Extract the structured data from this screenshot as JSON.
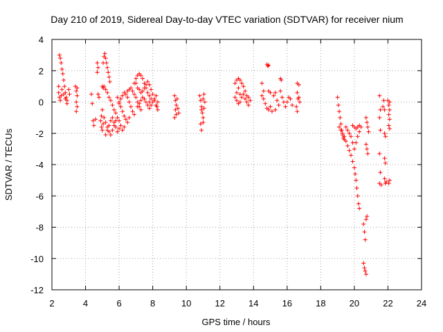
{
  "chart_data": {
    "type": "scatter",
    "title": "Day 210 of 2019, Sidereal Day-to-day VTEC variation (SDTVAR) for receiver nium",
    "xlabel": "GPS time / hours",
    "ylabel": "SDTVAR / TECUs",
    "xlim": [
      2,
      24
    ],
    "ylim": [
      -12,
      4
    ],
    "xticks": [
      2,
      4,
      6,
      8,
      10,
      12,
      14,
      16,
      18,
      20,
      22,
      24
    ],
    "yticks": [
      -12,
      -10,
      -8,
      -6,
      -4,
      -2,
      0,
      2,
      4
    ],
    "grid": true,
    "marker": "plus",
    "color": "#ff0000",
    "series": [
      {
        "name": "SDTVAR",
        "points": [
          [
            2.4,
            1.0
          ],
          [
            2.45,
            3.0
          ],
          [
            2.5,
            2.8
          ],
          [
            2.55,
            2.5
          ],
          [
            2.6,
            2.1
          ],
          [
            2.65,
            1.8
          ],
          [
            2.7,
            1.4
          ],
          [
            2.75,
            1.0
          ],
          [
            2.8,
            0.6
          ],
          [
            2.85,
            0.3
          ],
          [
            2.9,
            0.1
          ],
          [
            2.4,
            0.6
          ],
          [
            2.45,
            0.3
          ],
          [
            2.5,
            0.1
          ],
          [
            2.55,
            0.4
          ],
          [
            2.6,
            0.8
          ],
          [
            2.7,
            0.5
          ],
          [
            2.8,
            0.2
          ],
          [
            2.9,
            -0.1
          ],
          [
            3.0,
            0.8
          ],
          [
            3.05,
            0.5
          ],
          [
            3.4,
            1.0
          ],
          [
            3.45,
            0.7
          ],
          [
            3.5,
            0.4
          ],
          [
            3.45,
            0.0
          ],
          [
            3.5,
            -0.3
          ],
          [
            3.45,
            -0.6
          ],
          [
            3.5,
            0.9
          ],
          [
            4.35,
            0.5
          ],
          [
            4.4,
            -0.1
          ],
          [
            4.45,
            -1.2
          ],
          [
            4.5,
            -1.5
          ],
          [
            4.6,
            -1.1
          ],
          [
            4.7,
            2.5
          ],
          [
            4.75,
            2.2
          ],
          [
            4.7,
            1.9
          ],
          [
            4.75,
            0.5
          ],
          [
            4.8,
            0.3
          ],
          [
            4.9,
            -1.2
          ],
          [
            4.95,
            -1.6
          ],
          [
            5.0,
            -1.8
          ],
          [
            5.05,
            -1.4
          ],
          [
            4.95,
            -0.9
          ],
          [
            5.0,
            -0.5
          ],
          [
            5.05,
            2.5
          ],
          [
            5.1,
            2.9
          ],
          [
            5.15,
            3.1
          ],
          [
            5.2,
            2.8
          ],
          [
            5.25,
            2.5
          ],
          [
            5.3,
            2.2
          ],
          [
            5.35,
            1.9
          ],
          [
            5.4,
            1.6
          ],
          [
            5.45,
            1.3
          ],
          [
            5.0,
            1.0
          ],
          [
            5.05,
            0.9
          ],
          [
            5.1,
            1.0
          ],
          [
            5.2,
            0.8
          ],
          [
            5.3,
            0.6
          ],
          [
            5.4,
            0.3
          ],
          [
            5.5,
            0.1
          ],
          [
            5.6,
            -0.2
          ],
          [
            5.7,
            -0.5
          ],
          [
            5.8,
            -0.7
          ],
          [
            5.1,
            -1.0
          ],
          [
            5.2,
            -1.3
          ],
          [
            5.3,
            -1.6
          ],
          [
            5.4,
            -1.9
          ],
          [
            5.5,
            -2.1
          ],
          [
            5.6,
            -1.8
          ],
          [
            5.7,
            -1.5
          ],
          [
            5.8,
            -1.2
          ],
          [
            5.9,
            -1.0
          ],
          [
            6.0,
            -1.2
          ],
          [
            6.1,
            -1.5
          ],
          [
            6.2,
            -1.8
          ],
          [
            6.3,
            -1.6
          ],
          [
            5.2,
            -2.1
          ],
          [
            5.3,
            -1.8
          ],
          [
            5.4,
            -1.5
          ],
          [
            5.5,
            -1.2
          ],
          [
            5.6,
            -1.0
          ],
          [
            5.7,
            -1.3
          ],
          [
            5.8,
            -1.6
          ],
          [
            5.9,
            -1.9
          ],
          [
            6.0,
            -1.7
          ],
          [
            5.9,
            0.3
          ],
          [
            6.0,
            0.0
          ],
          [
            6.1,
            -0.3
          ],
          [
            6.2,
            -0.6
          ],
          [
            6.3,
            -0.9
          ],
          [
            6.4,
            -1.1
          ],
          [
            6.5,
            -1.3
          ],
          [
            6.6,
            -1.0
          ],
          [
            6.0,
            -0.1
          ],
          [
            6.1,
            0.2
          ],
          [
            6.2,
            0.4
          ],
          [
            6.3,
            0.6
          ],
          [
            6.4,
            0.5
          ],
          [
            6.5,
            0.3
          ],
          [
            6.6,
            0.0
          ],
          [
            6.7,
            -0.3
          ],
          [
            6.8,
            -0.6
          ],
          [
            6.9,
            -0.8
          ],
          [
            6.5,
            0.7
          ],
          [
            6.6,
            0.8
          ],
          [
            6.7,
            0.9
          ],
          [
            6.8,
            0.7
          ],
          [
            6.9,
            0.5
          ],
          [
            7.0,
            0.3
          ],
          [
            7.1,
            0.0
          ],
          [
            7.2,
            -0.3
          ],
          [
            7.3,
            -0.5
          ],
          [
            6.9,
            1.2
          ],
          [
            7.0,
            1.5
          ],
          [
            7.1,
            1.7
          ],
          [
            7.2,
            1.8
          ],
          [
            7.3,
            1.7
          ],
          [
            7.4,
            1.5
          ],
          [
            7.5,
            1.2
          ],
          [
            7.6,
            0.9
          ],
          [
            7.7,
            0.6
          ],
          [
            7.8,
            0.4
          ],
          [
            7.0,
            1.2
          ],
          [
            7.1,
            0.9
          ],
          [
            7.2,
            0.8
          ],
          [
            7.3,
            0.6
          ],
          [
            7.4,
            0.7
          ],
          [
            7.5,
            0.9
          ],
          [
            7.6,
            1.1
          ],
          [
            7.7,
            1.3
          ],
          [
            7.8,
            1.1
          ],
          [
            7.9,
            0.8
          ],
          [
            7.1,
            -0.3
          ],
          [
            7.2,
            -0.1
          ],
          [
            7.3,
            0.1
          ],
          [
            7.4,
            0.3
          ],
          [
            7.5,
            0.2
          ],
          [
            7.6,
            0.0
          ],
          [
            7.7,
            -0.2
          ],
          [
            7.8,
            0.0
          ],
          [
            7.9,
            0.2
          ],
          [
            7.8,
            -0.4
          ],
          [
            7.9,
            -0.2
          ],
          [
            8.0,
            0.0
          ],
          [
            8.1,
            0.2
          ],
          [
            8.2,
            0.4
          ],
          [
            8.0,
            0.5
          ],
          [
            8.1,
            0.1
          ],
          [
            8.2,
            -0.2
          ],
          [
            8.3,
            -0.5
          ],
          [
            8.25,
            -0.3
          ],
          [
            8.3,
            0.0
          ],
          [
            9.3,
            0.4
          ],
          [
            9.35,
            0.1
          ],
          [
            9.4,
            -0.2
          ],
          [
            9.35,
            -0.5
          ],
          [
            9.4,
            -0.8
          ],
          [
            9.3,
            -1.0
          ],
          [
            9.45,
            0.2
          ],
          [
            9.5,
            -0.4
          ],
          [
            9.55,
            -0.7
          ],
          [
            10.8,
            0.4
          ],
          [
            10.85,
            0.1
          ],
          [
            10.9,
            -0.3
          ],
          [
            10.95,
            -0.7
          ],
          [
            11.0,
            -1.0
          ],
          [
            10.85,
            -1.4
          ],
          [
            10.9,
            -1.8
          ],
          [
            11.0,
            0.2
          ],
          [
            11.05,
            -0.4
          ],
          [
            11.1,
            0.0
          ],
          [
            11.05,
            0.5
          ],
          [
            10.9,
            -0.5
          ],
          [
            11.0,
            -1.3
          ],
          [
            12.9,
            1.2
          ],
          [
            13.0,
            1.4
          ],
          [
            13.1,
            1.5
          ],
          [
            13.2,
            1.4
          ],
          [
            13.3,
            1.2
          ],
          [
            13.4,
            1.0
          ],
          [
            13.5,
            0.7
          ],
          [
            12.9,
            0.3
          ],
          [
            13.0,
            0.1
          ],
          [
            13.1,
            -0.1
          ],
          [
            13.2,
            0.0
          ],
          [
            13.3,
            0.3
          ],
          [
            13.4,
            0.5
          ],
          [
            13.5,
            0.2
          ],
          [
            13.6,
            0.0
          ],
          [
            13.7,
            -0.2
          ],
          [
            13.8,
            0.1
          ],
          [
            13.7,
            0.3
          ],
          [
            13.0,
            0.6
          ],
          [
            13.1,
            0.9
          ],
          [
            13.2,
            0.5
          ],
          [
            13.6,
            0.4
          ],
          [
            14.8,
            2.4
          ],
          [
            14.85,
            2.3
          ],
          [
            14.9,
            2.35
          ],
          [
            14.5,
            1.2
          ],
          [
            14.6,
            0.7
          ],
          [
            14.5,
            0.4
          ],
          [
            14.6,
            0.2
          ],
          [
            14.7,
            -0.1
          ],
          [
            14.8,
            -0.4
          ],
          [
            14.9,
            -0.5
          ],
          [
            15.0,
            -0.3
          ],
          [
            15.1,
            -0.6
          ],
          [
            15.0,
            0.6
          ],
          [
            14.9,
            0.7
          ],
          [
            15.2,
            0.4
          ],
          [
            15.3,
            0.6
          ],
          [
            15.4,
            0.1
          ],
          [
            15.5,
            -0.2
          ],
          [
            15.3,
            -0.5
          ],
          [
            15.6,
            1.5
          ],
          [
            15.65,
            1.4
          ],
          [
            15.6,
            0.7
          ],
          [
            15.7,
            0.3
          ],
          [
            15.8,
            0.0
          ],
          [
            15.9,
            -0.3
          ],
          [
            16.0,
            0.0
          ],
          [
            16.1,
            0.3
          ],
          [
            16.2,
            0.2
          ],
          [
            16.3,
            -0.2
          ],
          [
            16.6,
            1.2
          ],
          [
            16.7,
            1.1
          ],
          [
            16.6,
            0.6
          ],
          [
            16.65,
            0.2
          ],
          [
            16.55,
            -0.3
          ],
          [
            16.6,
            -0.6
          ],
          [
            16.7,
            0.3
          ],
          [
            16.75,
            0.0
          ],
          [
            19.0,
            0.3
          ],
          [
            19.05,
            -0.2
          ],
          [
            19.1,
            -0.6
          ],
          [
            19.15,
            -1.0
          ],
          [
            19.2,
            -1.4
          ],
          [
            19.25,
            -1.8
          ],
          [
            19.3,
            -2.1
          ],
          [
            19.35,
            -2.3
          ],
          [
            19.4,
            -2.4
          ],
          [
            19.1,
            -1.6
          ],
          [
            19.2,
            -1.8
          ],
          [
            19.3,
            -2.0
          ],
          [
            19.4,
            -2.2
          ],
          [
            19.5,
            -2.5
          ],
          [
            19.6,
            -2.8
          ],
          [
            19.7,
            -3.1
          ],
          [
            19.8,
            -3.4
          ],
          [
            19.9,
            -3.8
          ],
          [
            20.0,
            -4.2
          ],
          [
            20.05,
            -4.6
          ],
          [
            20.1,
            -5.0
          ],
          [
            20.15,
            -5.5
          ],
          [
            20.2,
            -6.0
          ],
          [
            20.25,
            -6.5
          ],
          [
            20.3,
            -6.8
          ],
          [
            19.5,
            -1.6
          ],
          [
            19.6,
            -1.8
          ],
          [
            19.7,
            -2.0
          ],
          [
            19.8,
            -2.2
          ],
          [
            19.9,
            -2.6
          ],
          [
            20.0,
            -3.0
          ],
          [
            20.1,
            -2.6
          ],
          [
            20.2,
            -2.2
          ],
          [
            20.3,
            -1.9
          ],
          [
            20.4,
            -1.6
          ],
          [
            19.9,
            -1.5
          ],
          [
            20.0,
            -1.6
          ],
          [
            20.1,
            -1.7
          ],
          [
            20.2,
            -1.6
          ],
          [
            20.3,
            -1.5
          ],
          [
            20.7,
            -2.7
          ],
          [
            20.75,
            -3.0
          ],
          [
            20.8,
            -3.3
          ],
          [
            20.7,
            -1.0
          ],
          [
            20.75,
            -1.3
          ],
          [
            20.8,
            -1.6
          ],
          [
            20.85,
            -1.9
          ],
          [
            20.55,
            -7.8
          ],
          [
            20.6,
            -8.3
          ],
          [
            20.65,
            -8.8
          ],
          [
            20.7,
            -7.5
          ],
          [
            20.75,
            -7.3
          ],
          [
            20.55,
            -10.3
          ],
          [
            20.6,
            -10.6
          ],
          [
            20.65,
            -10.8
          ],
          [
            20.7,
            -11.0
          ],
          [
            21.5,
            0.4
          ],
          [
            21.55,
            -0.5
          ],
          [
            21.5,
            -1.0
          ],
          [
            21.55,
            -1.8
          ],
          [
            21.5,
            -3.3
          ],
          [
            21.55,
            -4.5
          ],
          [
            21.5,
            -5.2
          ],
          [
            21.6,
            -5.3
          ],
          [
            21.7,
            -0.3
          ],
          [
            21.75,
            0.1
          ],
          [
            21.8,
            -0.5
          ],
          [
            21.8,
            -2.0
          ],
          [
            21.85,
            -2.2
          ],
          [
            21.8,
            -3.6
          ],
          [
            21.85,
            -3.9
          ],
          [
            21.8,
            -4.9
          ],
          [
            21.85,
            -5.2
          ],
          [
            21.9,
            -5.1
          ],
          [
            22.0,
            0.1
          ],
          [
            22.05,
            -0.2
          ],
          [
            22.1,
            -0.5
          ],
          [
            22.05,
            -0.8
          ],
          [
            22.1,
            -1.1
          ],
          [
            22.05,
            -1.5
          ],
          [
            22.1,
            -1.7
          ],
          [
            22.1,
            -5.0
          ],
          [
            22.05,
            -5.2
          ],
          [
            22.1,
            0.0
          ]
        ]
      }
    ]
  }
}
